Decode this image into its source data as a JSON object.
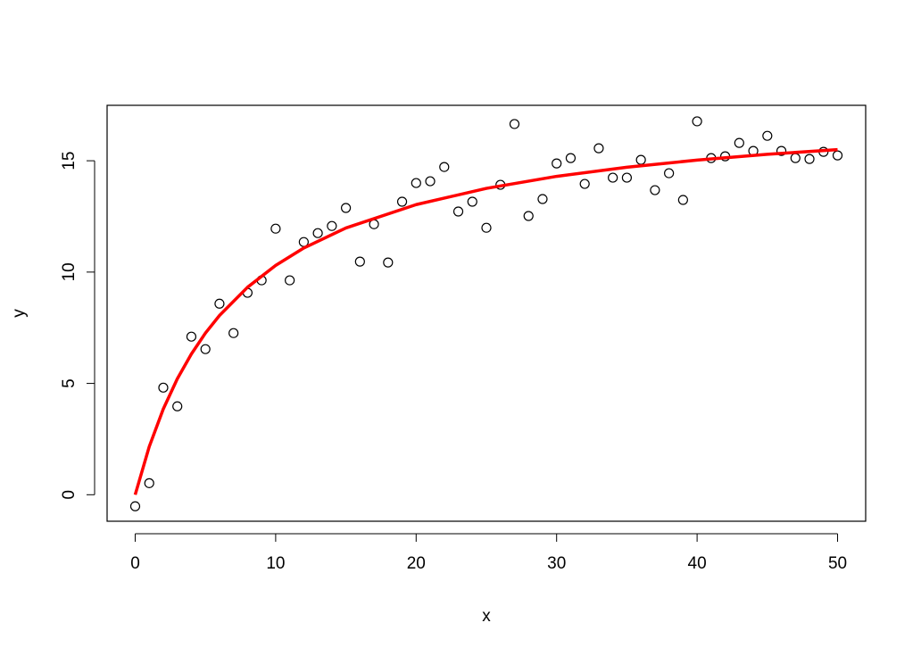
{
  "chart_data": {
    "type": "scatter",
    "xlabel": "x",
    "ylabel": "y",
    "xlim": [
      -2,
      52
    ],
    "ylim": [
      -1.19,
      17.49
    ],
    "xticks": [
      0,
      10,
      20,
      30,
      40,
      50
    ],
    "yticks": [
      0,
      5,
      10,
      15
    ],
    "grid": false,
    "series": [
      {
        "type": "scatter",
        "color": "#000000",
        "x": [
          0,
          1,
          2,
          3,
          4,
          5,
          6,
          7,
          8,
          9,
          10,
          11,
          12,
          13,
          14,
          15,
          16,
          17,
          18,
          19,
          20,
          21,
          22,
          23,
          24,
          25,
          26,
          27,
          28,
          29,
          30,
          31,
          32,
          33,
          34,
          35,
          36,
          37,
          38,
          39,
          40,
          41,
          42,
          43,
          44,
          45,
          46,
          47,
          48,
          49,
          50
        ],
        "values": [
          -0.52,
          0.52,
          4.81,
          3.97,
          7.1,
          6.54,
          8.58,
          7.26,
          9.07,
          9.63,
          11.95,
          9.63,
          11.35,
          11.75,
          12.07,
          12.88,
          10.47,
          12.15,
          10.43,
          13.16,
          14.0,
          14.08,
          14.72,
          12.72,
          13.16,
          11.99,
          13.92,
          16.65,
          12.52,
          13.28,
          14.88,
          15.12,
          13.96,
          15.56,
          14.24,
          14.24,
          15.04,
          13.68,
          14.44,
          13.24,
          16.77,
          15.12,
          15.2,
          15.8,
          15.44,
          16.12,
          15.44,
          15.12,
          15.08,
          15.4,
          15.24
        ]
      },
      {
        "type": "line",
        "color": "#ff0000",
        "x": [
          0,
          1,
          2,
          3,
          4,
          5,
          6,
          8,
          10,
          12,
          15,
          20,
          25,
          30,
          35,
          40,
          45,
          50
        ],
        "values": [
          0,
          2.16,
          3.85,
          5.21,
          6.32,
          7.26,
          8.05,
          9.32,
          10.3,
          11.08,
          11.98,
          13.03,
          13.76,
          14.3,
          14.71,
          15.03,
          15.29,
          15.5
        ]
      }
    ]
  }
}
